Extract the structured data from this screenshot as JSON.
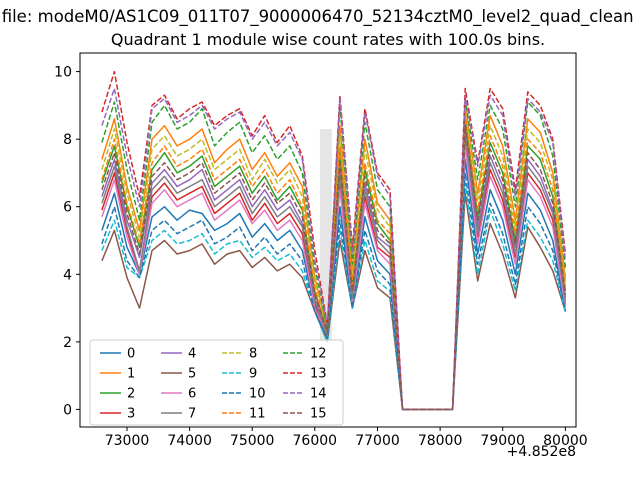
{
  "figure": {
    "suptitle": "n file: modeM0/AS1C09_011T07_9000006470_52134cztM0_level2_quad_clean",
    "axes_title": "Quadrant 1 module wise count rates with 100.0s bins.",
    "x_offset_text": "+4.852e8"
  },
  "chart_data": {
    "type": "line",
    "title": "Quadrant 1 module wise count rates with 100.0s bins.",
    "xlabel": "",
    "ylabel": "",
    "x_axis_offset": "+4.852e8",
    "xlim": [
      72250,
      80170
    ],
    "ylim": [
      -0.52,
      10.55
    ],
    "xticks": [
      73000,
      74000,
      75000,
      76000,
      77000,
      78000,
      79000,
      80000
    ],
    "yticks": [
      0,
      2,
      4,
      6,
      8,
      10
    ],
    "grid": false,
    "legend": {
      "location": "lower left",
      "ncol": 4,
      "labels": [
        "0",
        "1",
        "2",
        "3",
        "4",
        "5",
        "6",
        "7",
        "8",
        "9",
        "10",
        "11",
        "12",
        "13",
        "14",
        "15"
      ]
    },
    "shaded_region": {
      "x0": 76080,
      "x1": 76270,
      "y0": 2.0,
      "y1": 8.3,
      "color": "#cfcfcf",
      "opacity": 0.55
    },
    "x": [
      72600,
      72800,
      73000,
      73200,
      73400,
      73600,
      73800,
      74000,
      74200,
      74400,
      74600,
      74800,
      75000,
      75200,
      75400,
      75600,
      75800,
      76000,
      76200,
      76400,
      76600,
      76800,
      77000,
      77200,
      77400,
      77600,
      77800,
      78000,
      78200,
      78400,
      78600,
      78800,
      79000,
      79200,
      79400,
      79600,
      79800,
      80000
    ],
    "series": [
      {
        "name": "0",
        "color": "#1f77b4",
        "linestyle": "solid",
        "values": [
          5.3,
          6.4,
          4.8,
          4.0,
          5.7,
          6.0,
          5.6,
          5.9,
          5.8,
          5.3,
          5.5,
          5.8,
          5.1,
          5.5,
          5.0,
          5.3,
          4.7,
          3.0,
          2.1,
          6.0,
          3.0,
          5.7,
          4.4,
          4.0,
          0,
          0,
          0,
          0,
          0,
          7.4,
          4.6,
          6.5,
          5.6,
          4.0,
          6.4,
          5.9,
          5.0,
          2.9
        ]
      },
      {
        "name": "1",
        "color": "#ff7f0e",
        "linestyle": "solid",
        "values": [
          7.4,
          8.6,
          6.6,
          5.3,
          8.0,
          8.4,
          7.8,
          8.0,
          8.3,
          7.3,
          7.7,
          8.0,
          7.1,
          7.6,
          6.9,
          7.3,
          6.6,
          3.9,
          2.4,
          8.4,
          4.1,
          8.0,
          6.1,
          5.6,
          0,
          0,
          0,
          0,
          0,
          9.0,
          6.4,
          8.7,
          7.8,
          5.6,
          8.6,
          8.2,
          7.0,
          3.9
        ]
      },
      {
        "name": "2",
        "color": "#2ca02c",
        "linestyle": "solid",
        "values": [
          6.7,
          7.8,
          6.0,
          4.8,
          7.1,
          7.6,
          7.0,
          7.2,
          7.5,
          6.6,
          6.9,
          7.2,
          6.4,
          6.9,
          6.2,
          6.6,
          5.9,
          3.5,
          2.3,
          7.6,
          3.6,
          7.1,
          5.5,
          5.0,
          0,
          0,
          0,
          0,
          0,
          8.6,
          5.7,
          7.9,
          7.0,
          5.0,
          7.8,
          7.4,
          6.3,
          3.5
        ]
      },
      {
        "name": "3",
        "color": "#d62728",
        "linestyle": "solid",
        "values": [
          5.9,
          7.0,
          5.3,
          4.0,
          6.3,
          6.7,
          6.2,
          6.4,
          6.6,
          5.8,
          6.1,
          6.4,
          5.6,
          6.1,
          5.5,
          5.8,
          5.2,
          3.1,
          2.2,
          6.7,
          3.2,
          6.3,
          4.8,
          4.5,
          0,
          0,
          0,
          0,
          0,
          8.0,
          5.1,
          7.1,
          6.2,
          4.5,
          7.0,
          6.5,
          5.6,
          3.1
        ]
      },
      {
        "name": "4",
        "color": "#9467bd",
        "linestyle": "solid",
        "values": [
          6.3,
          7.4,
          5.6,
          4.5,
          6.7,
          7.1,
          6.6,
          6.8,
          7.1,
          6.2,
          6.5,
          6.8,
          6.0,
          6.5,
          5.9,
          6.2,
          5.5,
          3.3,
          2.2,
          7.1,
          3.4,
          6.7,
          5.1,
          4.8,
          0,
          0,
          0,
          0,
          0,
          8.3,
          5.4,
          7.5,
          6.6,
          4.8,
          7.4,
          6.9,
          5.9,
          3.3
        ]
      },
      {
        "name": "5",
        "color": "#8c564b",
        "linestyle": "solid",
        "values": [
          4.4,
          5.3,
          3.9,
          3.0,
          4.7,
          5.0,
          4.6,
          4.7,
          4.9,
          4.3,
          4.6,
          4.7,
          4.2,
          4.5,
          4.1,
          4.3,
          3.9,
          2.9,
          2.0,
          5.0,
          3.0,
          4.7,
          3.6,
          3.3,
          0,
          0,
          0,
          0,
          0,
          6.4,
          3.8,
          5.5,
          4.6,
          3.3,
          5.4,
          4.8,
          4.1,
          2.9
        ]
      },
      {
        "name": "6",
        "color": "#e377c2",
        "linestyle": "solid",
        "values": [
          5.7,
          6.8,
          5.1,
          4.0,
          6.1,
          6.5,
          6.0,
          6.2,
          6.4,
          5.6,
          5.9,
          6.2,
          5.5,
          5.9,
          5.3,
          5.6,
          5.0,
          3.0,
          2.2,
          6.5,
          3.1,
          6.1,
          4.7,
          4.3,
          0,
          0,
          0,
          0,
          0,
          7.8,
          4.9,
          6.9,
          6.0,
          4.3,
          6.8,
          6.3,
          5.4,
          3.0
        ]
      },
      {
        "name": "7",
        "color": "#7f7f7f",
        "linestyle": "solid",
        "values": [
          6.1,
          7.2,
          5.4,
          4.1,
          6.5,
          6.9,
          6.4,
          6.6,
          6.8,
          6.0,
          6.3,
          6.6,
          5.8,
          6.3,
          5.7,
          6.0,
          5.4,
          3.2,
          2.2,
          6.9,
          3.3,
          6.5,
          5.0,
          4.6,
          0,
          0,
          0,
          0,
          0,
          8.2,
          5.2,
          7.3,
          6.4,
          4.6,
          7.2,
          6.7,
          5.8,
          3.2
        ]
      },
      {
        "name": "8",
        "color": "#bcbd22",
        "linestyle": "dashed",
        "values": [
          7.1,
          8.3,
          6.4,
          5.1,
          7.7,
          8.1,
          7.5,
          7.7,
          8.0,
          7.1,
          7.4,
          7.7,
          6.8,
          7.4,
          6.7,
          7.1,
          6.3,
          3.8,
          2.3,
          8.1,
          3.9,
          7.7,
          5.9,
          5.4,
          0,
          0,
          0,
          0,
          0,
          8.9,
          6.2,
          8.4,
          7.5,
          5.4,
          8.3,
          7.9,
          6.8,
          3.8
        ]
      },
      {
        "name": "9",
        "color": "#17becf",
        "linestyle": "dashed",
        "values": [
          4.7,
          5.6,
          4.2,
          3.9,
          5.0,
          5.3,
          4.9,
          5.0,
          5.2,
          4.6,
          4.9,
          5.0,
          4.5,
          4.8,
          4.4,
          4.6,
          4.1,
          2.9,
          2.0,
          5.3,
          3.0,
          5.0,
          3.8,
          3.5,
          0,
          0,
          0,
          0,
          0,
          6.7,
          4.0,
          5.9,
          4.9,
          3.5,
          5.6,
          5.1,
          4.4,
          2.9
        ]
      },
      {
        "name": "10",
        "color": "#1f77b4",
        "linestyle": "dashed",
        "values": [
          4.9,
          6.0,
          4.4,
          3.9,
          5.3,
          5.6,
          5.2,
          5.4,
          5.6,
          4.9,
          5.1,
          5.4,
          4.7,
          5.1,
          4.6,
          4.9,
          4.4,
          2.9,
          2.1,
          5.6,
          3.0,
          5.3,
          4.1,
          3.7,
          0,
          0,
          0,
          0,
          0,
          7.0,
          4.3,
          6.1,
          5.2,
          3.7,
          6.0,
          5.5,
          4.7,
          2.9
        ]
      },
      {
        "name": "11",
        "color": "#ff7f0e",
        "linestyle": "dashed",
        "values": [
          6.8,
          8.0,
          6.1,
          4.9,
          7.3,
          7.8,
          7.2,
          7.4,
          7.7,
          6.8,
          7.1,
          7.4,
          6.6,
          7.1,
          6.4,
          6.8,
          6.0,
          3.6,
          2.3,
          7.8,
          3.7,
          7.3,
          5.6,
          5.2,
          0,
          0,
          0,
          0,
          0,
          8.7,
          5.9,
          8.1,
          7.2,
          5.2,
          8.0,
          7.6,
          6.5,
          3.6
        ]
      },
      {
        "name": "12",
        "color": "#2ca02c",
        "linestyle": "dashed",
        "values": [
          7.9,
          9.1,
          7.1,
          5.6,
          8.5,
          9.0,
          8.3,
          8.5,
          8.9,
          7.8,
          8.2,
          8.5,
          7.6,
          8.1,
          7.4,
          7.8,
          7.0,
          4.2,
          2.4,
          9.0,
          4.3,
          8.5,
          6.5,
          6.0,
          0,
          0,
          0,
          0,
          0,
          9.2,
          6.8,
          9.0,
          8.3,
          6.0,
          9.1,
          8.7,
          7.5,
          4.2
        ]
      },
      {
        "name": "13",
        "color": "#d62728",
        "linestyle": "dashed",
        "values": [
          8.8,
          10.0,
          7.9,
          6.3,
          9.0,
          9.3,
          8.6,
          8.9,
          9.1,
          8.4,
          8.7,
          8.9,
          8.1,
          8.7,
          7.9,
          8.4,
          7.5,
          4.7,
          2.5,
          9.3,
          4.8,
          8.9,
          7.0,
          6.5,
          0,
          0,
          0,
          0,
          0,
          9.5,
          7.3,
          9.5,
          8.9,
          6.5,
          9.4,
          9.0,
          8.0,
          4.6
        ]
      },
      {
        "name": "14",
        "color": "#9467bd",
        "linestyle": "dashed",
        "values": [
          8.4,
          9.5,
          7.5,
          6.0,
          8.9,
          9.2,
          8.5,
          8.7,
          9.0,
          8.3,
          8.6,
          8.8,
          8.0,
          8.5,
          7.8,
          8.2,
          7.4,
          4.4,
          2.5,
          9.2,
          4.6,
          8.8,
          6.9,
          6.3,
          0,
          0,
          0,
          0,
          0,
          9.3,
          7.2,
          9.3,
          8.7,
          6.3,
          9.2,
          8.8,
          7.9,
          4.4
        ]
      },
      {
        "name": "15",
        "color": "#8c564b",
        "linestyle": "dashed",
        "values": [
          6.5,
          7.6,
          5.8,
          4.6,
          6.9,
          7.3,
          6.8,
          7.0,
          7.3,
          6.4,
          6.7,
          7.0,
          6.2,
          6.7,
          6.1,
          6.4,
          5.7,
          3.4,
          2.3,
          7.3,
          3.5,
          6.9,
          5.3,
          4.9,
          0,
          0,
          0,
          0,
          0,
          8.4,
          5.6,
          7.7,
          6.8,
          4.9,
          7.6,
          7.1,
          6.1,
          3.4
        ]
      }
    ]
  }
}
